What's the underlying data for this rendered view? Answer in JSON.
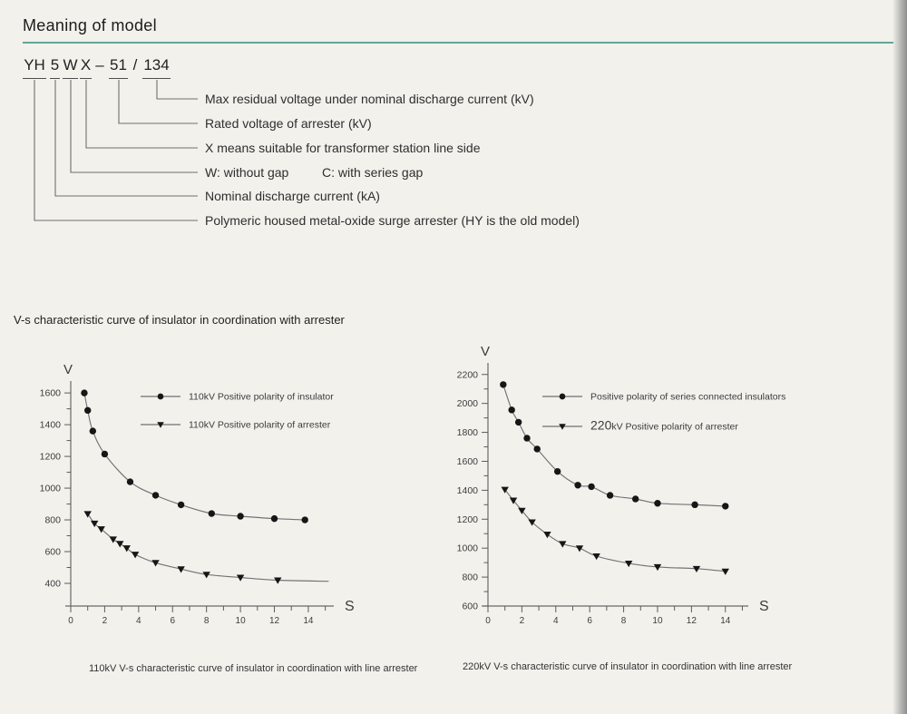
{
  "page": {
    "heading": "Meaning of model",
    "accent_color": "#62a697",
    "background_color": "#f2f1ec",
    "section_title": "V-s characteristic curve of insulator in coordination with arrester"
  },
  "model_diagram": {
    "code_segments": [
      {
        "text": "YH",
        "underline": true
      },
      {
        "text": "5",
        "underline": true
      },
      {
        "text": "W",
        "underline": true
      },
      {
        "text": "X",
        "underline": true
      },
      {
        "text": "–",
        "underline": false
      },
      {
        "text": "51",
        "underline": true
      },
      {
        "text": "/",
        "underline": false
      },
      {
        "text": "134",
        "underline": true
      }
    ],
    "rows": [
      [
        "Max residual voltage under nominal discharge current (kV)"
      ],
      [
        "Rated voltage of arrester (kV)"
      ],
      [
        "X means suitable for transformer station line side"
      ],
      [
        "W: without gap",
        "C: with series gap"
      ],
      [
        "Nominal discharge current (kA)"
      ],
      [
        "Polymeric housed metal-oxide surge arrester (HY is the old model)"
      ]
    ]
  },
  "chart_data": [
    {
      "type": "line",
      "title": "",
      "caption": "110kV V-s characteristic curve of insulator in coordination with line arrester",
      "xlabel": "S",
      "ylabel": "V",
      "xlim": [
        0,
        15.5
      ],
      "ylim": [
        257,
        1675
      ],
      "x_major_ticks": [
        0,
        2,
        4,
        6,
        8,
        10,
        12,
        14
      ],
      "x_minor_ticks": [
        1,
        3,
        5,
        7,
        9,
        11,
        13,
        15
      ],
      "y_major_ticks": [
        400,
        600,
        800,
        1000,
        1200,
        1400,
        1600
      ],
      "y_minor_ticks": [
        500,
        700,
        900,
        1100,
        1300,
        1500
      ],
      "grid": false,
      "legend_position": "upper right inside",
      "series": [
        {
          "name": "110kV Positive polarity of insulator",
          "marker": "circle",
          "points": [
            [
              0.8,
              1600
            ],
            [
              1.0,
              1490
            ],
            [
              1.3,
              1360
            ],
            [
              2.0,
              1215
            ],
            [
              3.5,
              1040
            ],
            [
              5.0,
              955
            ],
            [
              6.5,
              895
            ],
            [
              8.3,
              840
            ],
            [
              10.0,
              823
            ],
            [
              12.0,
              808
            ],
            [
              13.8,
              800
            ]
          ]
        },
        {
          "name": "110kV Positive polarity of arrester",
          "marker": "triangle-down",
          "points": [
            [
              1.0,
              838
            ],
            [
              1.4,
              778
            ],
            [
              1.8,
              742
            ],
            [
              2.5,
              678
            ],
            [
              2.9,
              650
            ],
            [
              3.3,
              622
            ],
            [
              3.8,
              582
            ],
            [
              5.0,
              530
            ],
            [
              6.5,
              490
            ],
            [
              8.0,
              456
            ],
            [
              10.0,
              437
            ],
            [
              12.2,
              420
            ]
          ],
          "tail": [
            15.2,
            413
          ]
        }
      ]
    },
    {
      "type": "line",
      "title": "",
      "caption": "220kV V-s characteristic curve of insulator in coordination with line arrester",
      "xlabel": "S",
      "ylabel": "V",
      "xlim": [
        0,
        15.35
      ],
      "ylim": [
        600,
        2280
      ],
      "x_major_ticks": [
        0,
        2,
        4,
        6,
        8,
        10,
        12,
        14
      ],
      "x_minor_ticks": [
        1,
        3,
        5,
        7,
        9,
        11,
        13,
        15
      ],
      "y_major_ticks": [
        600,
        800,
        1000,
        1200,
        1400,
        1600,
        1800,
        2000,
        2200
      ],
      "y_minor_ticks": [
        700,
        900,
        1100,
        1300,
        1500,
        1700,
        1900,
        2100
      ],
      "grid": false,
      "legend_position": "upper right inside",
      "series": [
        {
          "name": "Positive polarity of series connected insulators",
          "marker": "circle",
          "points": [
            [
              0.9,
              2130
            ],
            [
              1.4,
              1955
            ],
            [
              1.8,
              1870
            ],
            [
              2.3,
              1760
            ],
            [
              2.9,
              1685
            ],
            [
              4.1,
              1530
            ],
            [
              5.3,
              1435
            ],
            [
              6.1,
              1425
            ],
            [
              7.2,
              1365
            ],
            [
              8.7,
              1340
            ],
            [
              10.0,
              1310
            ],
            [
              12.2,
              1300
            ],
            [
              14.0,
              1290
            ]
          ]
        },
        {
          "name": "220kV Positive polarity of arrester",
          "marker": "triangle-down",
          "legend_big_prefix": "220",
          "points": [
            [
              1.0,
              1405
            ],
            [
              1.5,
              1330
            ],
            [
              2.0,
              1260
            ],
            [
              2.6,
              1180
            ],
            [
              3.5,
              1095
            ],
            [
              4.4,
              1030
            ],
            [
              5.4,
              1000
            ],
            [
              6.4,
              945
            ],
            [
              8.3,
              895
            ],
            [
              10.0,
              870
            ],
            [
              12.3,
              858
            ],
            [
              14.0,
              840
            ]
          ]
        }
      ]
    }
  ]
}
